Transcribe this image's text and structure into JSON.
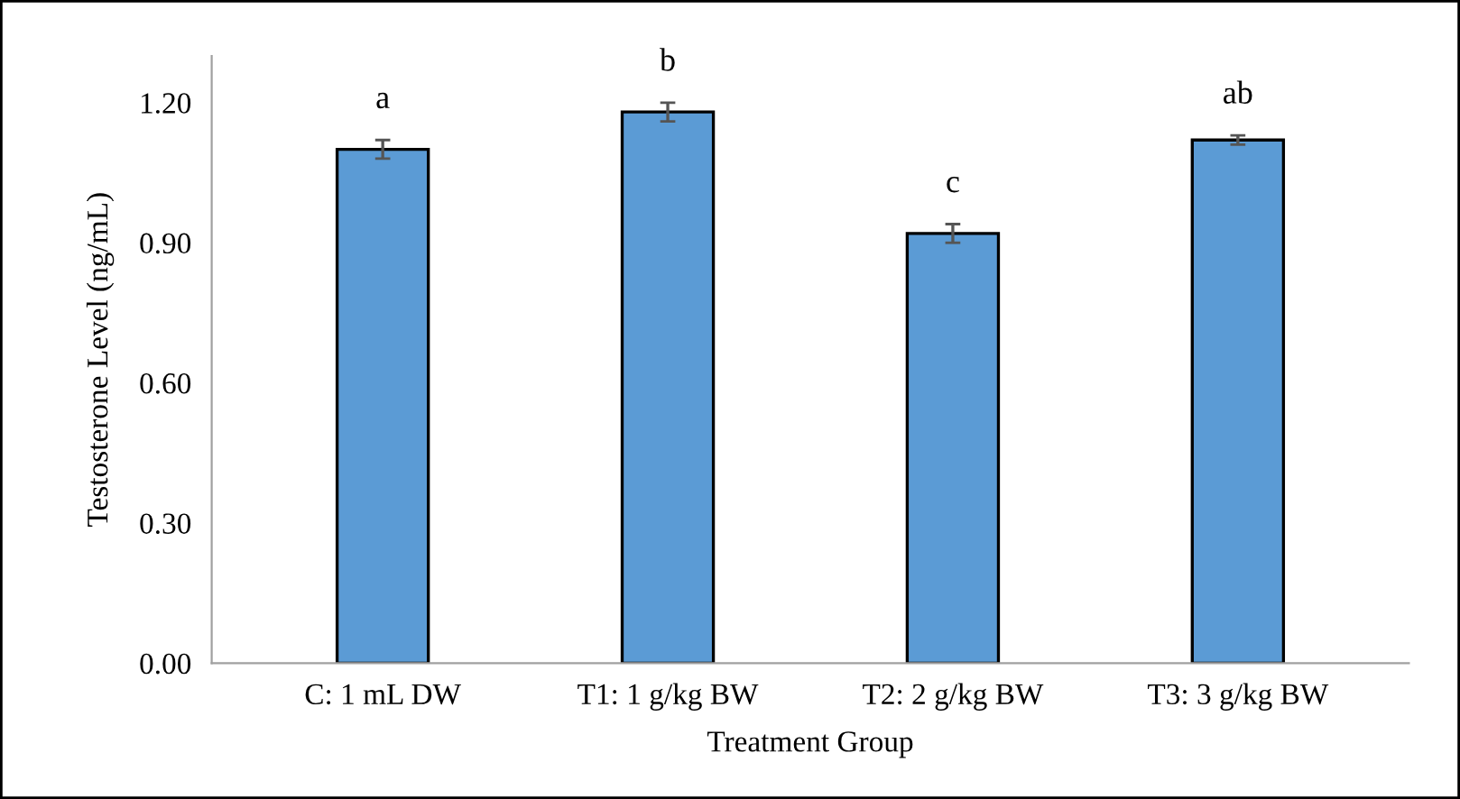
{
  "chart_data": {
    "type": "bar",
    "xlabel": "Treatment Group",
    "ylabel": "Testosterone Level (ng/mL)",
    "categories": [
      "C: 1 mL DW",
      "T1: 1 g/kg BW",
      "T2: 2 g/kg BW",
      "T3: 3 g/kg BW"
    ],
    "values": [
      1.1,
      1.18,
      0.92,
      1.12
    ],
    "errors": [
      0.02,
      0.02,
      0.02,
      0.01
    ],
    "color": "#5b9bd5",
    "ylim": [
      0,
      1.3
    ],
    "yticks": [
      {
        "value": 0,
        "label": "0.00"
      },
      {
        "value": 0.3,
        "label": "0.30"
      },
      {
        "value": 0.6,
        "label": "0.60"
      },
      {
        "value": 0.9,
        "label": "0.90"
      },
      {
        "value": 1.2,
        "label": "1.20"
      }
    ],
    "grid": false,
    "legend": false,
    "annotations": [
      "a",
      "b",
      "c",
      "ab"
    ]
  }
}
